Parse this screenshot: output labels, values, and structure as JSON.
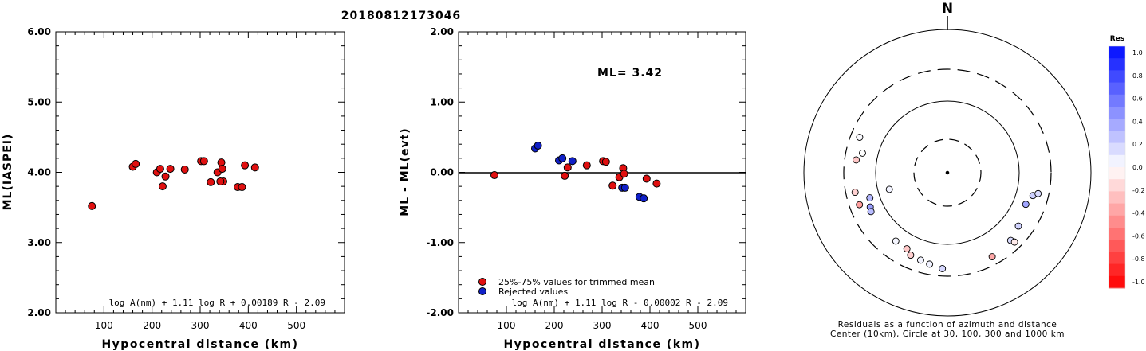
{
  "title": "20180812173046",
  "colors": {
    "rejected": "#1020c8",
    "accepted": "#e01010"
  },
  "chart_data": [
    {
      "type": "scatter",
      "xlabel": "Hypocentral distance (km)",
      "ylabel": "ML(IASPEI)",
      "xlim": [
        0,
        600
      ],
      "ylim": [
        2.0,
        6.0
      ],
      "xticks": [
        100,
        200,
        300,
        400,
        500
      ],
      "yticks": [
        "2.00",
        "3.00",
        "4.00",
        "5.00",
        "6.00"
      ],
      "formula": "log A(nm) + 1.11 log R + 0.00189 R - 2.09",
      "series": [
        {
          "color": "#e01010",
          "points": [
            [
              75,
              3.52
            ],
            [
              160,
              4.08
            ],
            [
              166,
              4.12
            ],
            [
              210,
              4.0
            ],
            [
              217,
              4.05
            ],
            [
              222,
              3.8
            ],
            [
              228,
              3.94
            ],
            [
              238,
              4.05
            ],
            [
              268,
              4.04
            ],
            [
              302,
              4.16
            ],
            [
              308,
              4.16
            ],
            [
              322,
              3.86
            ],
            [
              336,
              4.0
            ],
            [
              344,
              4.14
            ],
            [
              346,
              4.05
            ],
            [
              348,
              3.87
            ],
            [
              342,
              3.87
            ],
            [
              378,
              3.79
            ],
            [
              387,
              3.79
            ],
            [
              393,
              4.1
            ],
            [
              414,
              4.07
            ]
          ]
        }
      ]
    },
    {
      "type": "scatter",
      "xlabel": "Hypocentral distance (km)",
      "ylabel": "ML - ML(evt)",
      "xlim": [
        0,
        600
      ],
      "ylim": [
        -2.0,
        2.0
      ],
      "xticks": [
        100,
        200,
        300,
        400,
        500
      ],
      "yticks": [
        "-2.00",
        "-1.00",
        "0.00",
        "1.00",
        "2.00"
      ],
      "ml_label": "ML= 3.42",
      "formula": "log A(nm) + 1.11 log R - 0.00002 R - 2.09",
      "legend": [
        "25%-75% values for trimmed mean",
        "Rejected values"
      ],
      "series": [
        {
          "name": "25%-75% values for trimmed mean",
          "color": "#e01010",
          "points": [
            [
              75,
              -0.04
            ],
            [
              222,
              -0.05
            ],
            [
              228,
              0.07
            ],
            [
              268,
              0.1
            ],
            [
              302,
              0.16
            ],
            [
              308,
              0.15
            ],
            [
              322,
              -0.19
            ],
            [
              336,
              -0.07
            ],
            [
              344,
              0.06
            ],
            [
              346,
              -0.02
            ],
            [
              393,
              -0.09
            ],
            [
              414,
              -0.16
            ]
          ]
        },
        {
          "name": "Rejected values",
          "color": "#1020c8",
          "points": [
            [
              160,
              0.34
            ],
            [
              166,
              0.38
            ],
            [
              210,
              0.17
            ],
            [
              217,
              0.2
            ],
            [
              238,
              0.16
            ],
            [
              342,
              -0.22
            ],
            [
              348,
              -0.22
            ],
            [
              378,
              -0.35
            ],
            [
              387,
              -0.37
            ]
          ]
        }
      ]
    },
    {
      "type": "scatter",
      "subtype": "polar residual plot",
      "north_label": "N",
      "caption_line1": "Residuals as a function of azimuth and distance",
      "caption_line2": "Center (10km), Circle at 30, 100, 300 and 1000 km",
      "colorbar_title": "Res",
      "colorbar_ticks": [
        "1.0",
        "0.8",
        "0.6",
        "0.4",
        "0.2",
        "0.0",
        "-0.2",
        "-0.4",
        "-0.6",
        "-0.8",
        "-1.0"
      ],
      "note": "points given as [azimuth_deg, distance_km, residual]",
      "points": [
        [
          292,
          220,
          0.02
        ],
        [
          278,
          202,
          -0.22
        ],
        [
          283,
          170,
          0.0
        ],
        [
          258,
          218,
          -0.18
        ],
        [
          250,
          212,
          -0.38
        ],
        [
          252,
          140,
          0.3
        ],
        [
          246,
          155,
          0.4
        ],
        [
          243,
          162,
          0.28
        ],
        [
          217,
          162,
          0.04
        ],
        [
          208,
          165,
          -0.22
        ],
        [
          204,
          190,
          -0.19
        ],
        [
          197,
          198,
          0.05
        ],
        [
          191,
          210,
          0.06
        ],
        [
          183,
          232,
          0.16
        ],
        [
          254,
          70,
          0.05
        ],
        [
          112,
          155,
          0.37
        ],
        [
          105,
          178,
          0.2
        ],
        [
          103,
          208,
          0.15
        ],
        [
          127,
          180,
          0.18
        ],
        [
          137,
          206,
          0.15
        ],
        [
          136,
          235,
          -0.08
        ],
        [
          152,
          225,
          -0.34
        ]
      ]
    }
  ]
}
